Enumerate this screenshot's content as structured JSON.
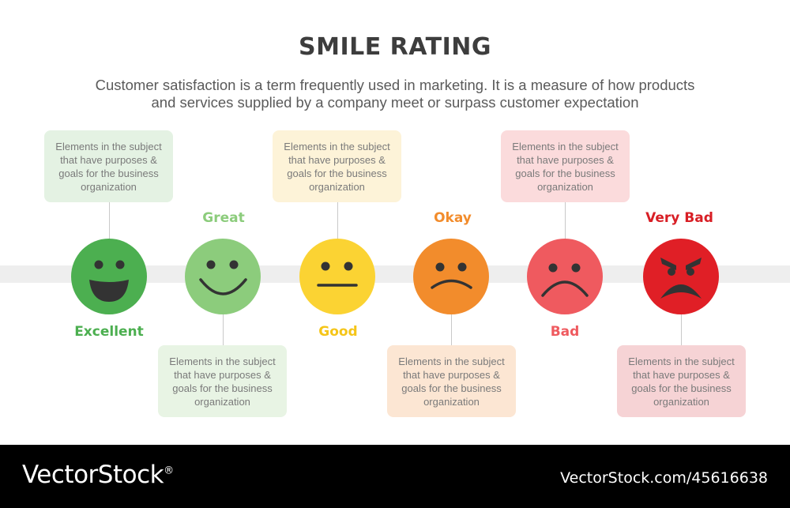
{
  "header": {
    "title": "SMILE RATING",
    "subtitle_line1": "Customer satisfaction is a term frequently used in marketing. It is a measure of how products",
    "subtitle_line2": "and services supplied by a company meet or surpass customer expectation"
  },
  "ratings": [
    {
      "label": "Excellent",
      "color": "#4caf50",
      "label_color": "#4caf50",
      "box_bg": "#e4f2e3",
      "icon": "laughing-face-icon",
      "description": "Elements in the subject that have purposes & goals for the business organization"
    },
    {
      "label": "Great",
      "color": "#8ccc7c",
      "label_color": "#8ccc7c",
      "box_bg": "#e8f4e4",
      "icon": "smiling-face-icon",
      "description": "Elements in the subject that have purposes & goals for the business organization"
    },
    {
      "label": "Good",
      "color": "#fbd333",
      "label_color": "#f5c518",
      "box_bg": "#fdf3d8",
      "icon": "neutral-face-icon",
      "description": "Elements in the subject that have purposes & goals for the business organization"
    },
    {
      "label": "Okay",
      "color": "#f28c2c",
      "label_color": "#f28c2c",
      "box_bg": "#fce6d3",
      "icon": "slightly-frowning-face-icon",
      "description": "Elements in the subject that have purposes & goals for the business organization"
    },
    {
      "label": "Bad",
      "color": "#ef5a5f",
      "label_color": "#ef5a5f",
      "box_bg": "#fbdbdc",
      "icon": "frowning-face-icon",
      "description": "Elements in the subject that have purposes & goals for the business organization"
    },
    {
      "label": "Very Bad",
      "color": "#e01f26",
      "label_color": "#d81e25",
      "box_bg": "#f6d3d5",
      "icon": "angry-face-icon",
      "description": "Elements in the subject that have purposes & goals for the business organization"
    }
  ],
  "footer": {
    "brand": "VectorStock",
    "registered_mark": "®",
    "image_id": "VectorStock.com/45616638"
  }
}
